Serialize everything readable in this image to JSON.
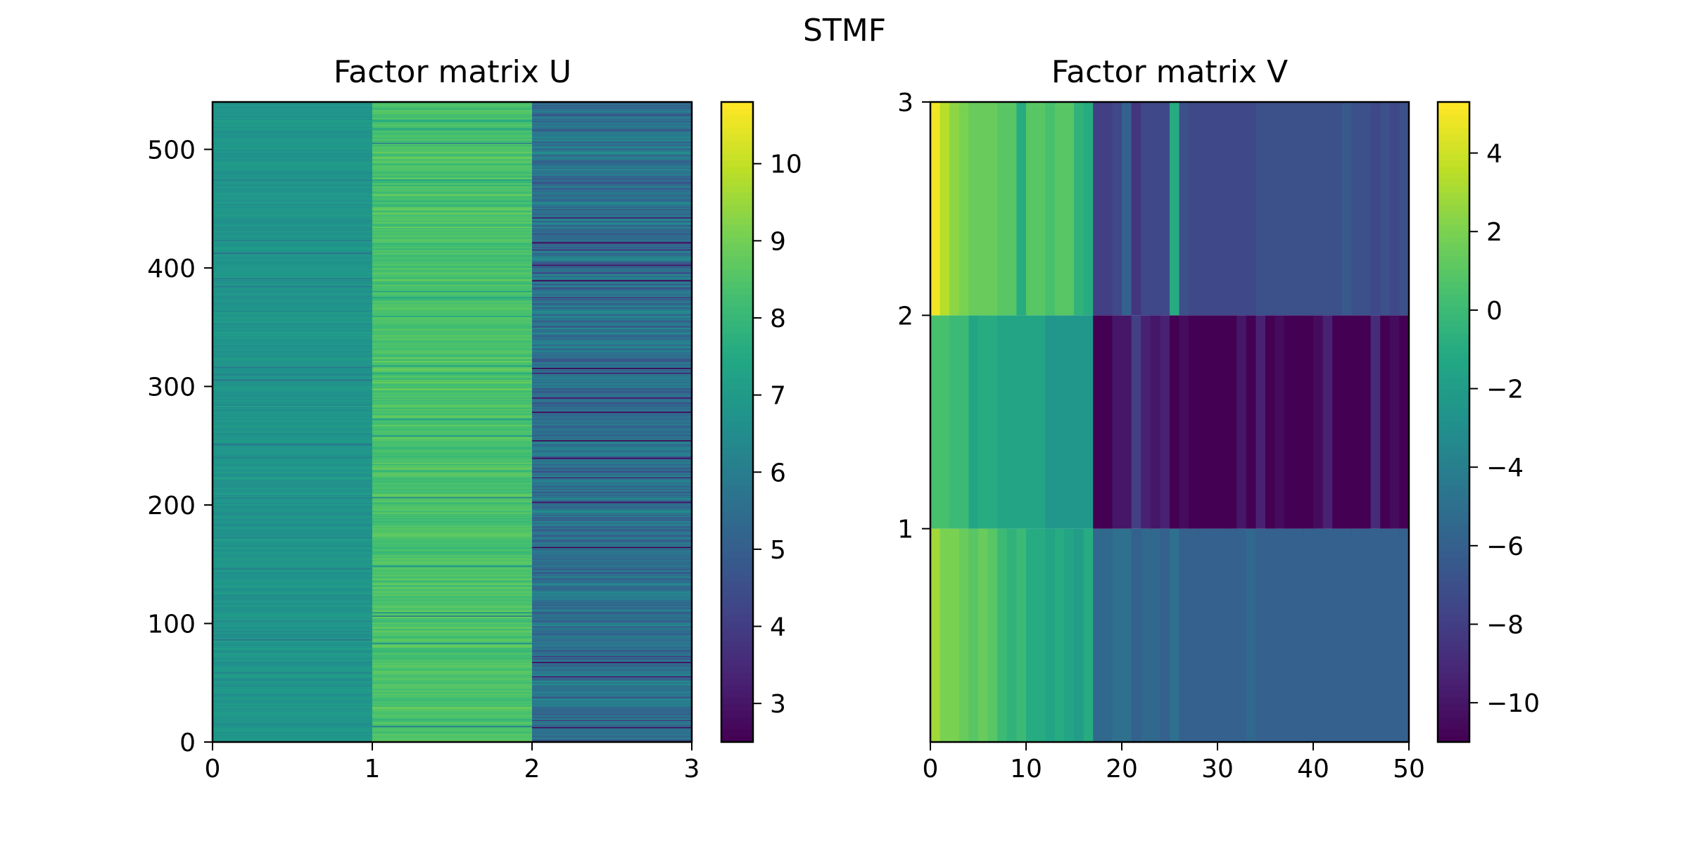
{
  "chart_data": {
    "suptitle": "STMF",
    "type": "heatmap",
    "colormap": "viridis",
    "panels": [
      {
        "id": "U",
        "title": "Factor matrix U",
        "rows": 540,
        "cols": 3,
        "xlim": [
          0,
          3
        ],
        "ylim": [
          0,
          540
        ],
        "xticks": [
          0,
          1,
          2,
          3
        ],
        "xtick_labels": [
          "0",
          "1",
          "2",
          "3"
        ],
        "yticks": [
          0,
          100,
          200,
          300,
          400,
          500
        ],
        "ytick_labels": [
          "0",
          "100",
          "200",
          "300",
          "400",
          "500"
        ],
        "column_typical_values": [
          6.8,
          8.4,
          5.6
        ],
        "colorbar": {
          "vmin": 2.5,
          "vmax": 10.8,
          "ticks": [
            3,
            4,
            5,
            6,
            7,
            8,
            9,
            10
          ],
          "tick_labels": [
            "3",
            "4",
            "5",
            "6",
            "7",
            "8",
            "9",
            "10"
          ]
        }
      },
      {
        "id": "V",
        "title": "Factor matrix V",
        "rows": 3,
        "cols": 50,
        "xlim": [
          0,
          50
        ],
        "ylim": [
          0,
          3
        ],
        "xticks": [
          0,
          10,
          20,
          30,
          40,
          50
        ],
        "xtick_labels": [
          "0",
          "10",
          "20",
          "30",
          "40",
          "50"
        ],
        "yticks": [
          1,
          2,
          3
        ],
        "ytick_labels": [
          "1",
          "2",
          "3"
        ],
        "row_values": [
          [
            3.0,
            2.0,
            2.0,
            1.5,
            1.0,
            1.5,
            1.0,
            0.0,
            -0.5,
            0.0,
            -1.0,
            -1.0,
            -1.5,
            -1.0,
            -1.5,
            -2.0,
            -1.0,
            -5.5,
            -5.5,
            -5.0,
            -5.0,
            -6.0,
            -5.5,
            -5.5,
            -6.0,
            -5.0,
            -6.0,
            -6.0,
            -6.0,
            -6.0,
            -6.0,
            -6.0,
            -6.0,
            -5.5,
            -6.0,
            -6.0,
            -6.0,
            -6.0,
            -6.0,
            -6.0,
            -6.0,
            -6.0,
            -6.0,
            -6.0,
            -6.0,
            -6.0,
            -6.0,
            -6.0,
            -6.0,
            -6.0
          ],
          [
            0.5,
            0.5,
            0.0,
            0.0,
            -1.5,
            -1.0,
            -1.0,
            -1.5,
            -1.5,
            -1.5,
            -1.5,
            -1.5,
            -2.5,
            -2.5,
            -2.5,
            -2.5,
            -2.5,
            -11.0,
            -11.0,
            -10.0,
            -10.0,
            -8.0,
            -9.5,
            -10.0,
            -9.5,
            -11.0,
            -10.5,
            -11.0,
            -11.0,
            -11.0,
            -11.0,
            -11.0,
            -10.0,
            -11.0,
            -9.5,
            -11.0,
            -10.5,
            -11.0,
            -11.0,
            -11.0,
            -10.5,
            -9.5,
            -11.0,
            -11.0,
            -11.0,
            -11.0,
            -9.0,
            -11.0,
            -10.5,
            -11.0
          ],
          [
            5.0,
            3.5,
            2.5,
            2.0,
            1.5,
            1.5,
            1.5,
            1.0,
            1.0,
            -1.0,
            1.0,
            1.0,
            0.5,
            1.0,
            1.0,
            -0.5,
            -1.0,
            -8.0,
            -8.0,
            -7.5,
            -6.0,
            -8.5,
            -7.5,
            -7.5,
            -7.5,
            -1.0,
            -7.0,
            -7.5,
            -7.5,
            -7.5,
            -7.5,
            -7.5,
            -7.5,
            -7.5,
            -7.0,
            -7.0,
            -7.0,
            -7.0,
            -7.0,
            -7.0,
            -7.0,
            -7.0,
            -7.0,
            -6.5,
            -7.0,
            -7.0,
            -7.5,
            -7.0,
            -7.5,
            -7.0
          ]
        ],
        "colorbar": {
          "vmin": -11.0,
          "vmax": 5.3,
          "ticks": [
            -10,
            -8,
            -6,
            -4,
            -2,
            0,
            2,
            4
          ],
          "tick_labels": [
            "−10",
            "−8",
            "−6",
            "−4",
            "−2",
            "0",
            "2",
            "4"
          ]
        }
      }
    ]
  }
}
